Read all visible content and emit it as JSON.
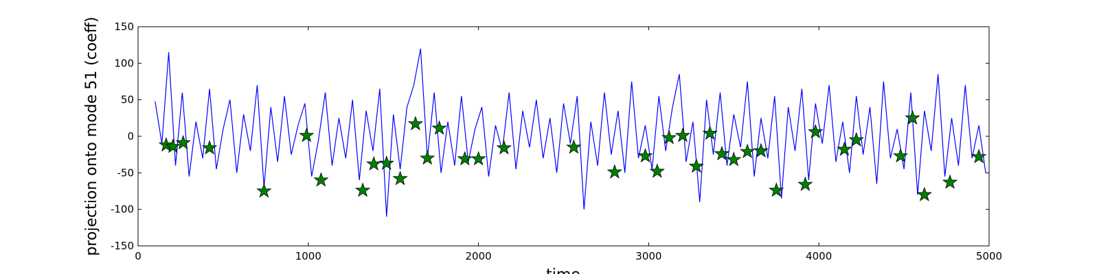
{
  "chart_data": {
    "type": "line",
    "x_label": "time",
    "y_label": "projection onto mode 51 (coeff)",
    "xlim": [
      0,
      5000
    ],
    "ylim": [
      -150,
      150
    ],
    "xticks": [
      0,
      1000,
      2000,
      3000,
      4000,
      5000
    ],
    "yticks": [
      -150,
      -100,
      -50,
      0,
      50,
      100,
      150
    ],
    "series": [
      {
        "type": "line",
        "color": "#0000ff",
        "x": [
          100,
          140,
          180,
          220,
          260,
          300,
          340,
          380,
          420,
          460,
          500,
          540,
          580,
          620,
          660,
          700,
          740,
          780,
          820,
          860,
          900,
          940,
          980,
          1020,
          1060,
          1100,
          1140,
          1180,
          1220,
          1260,
          1300,
          1340,
          1380,
          1420,
          1460,
          1500,
          1540,
          1580,
          1620,
          1660,
          1700,
          1740,
          1780,
          1820,
          1860,
          1900,
          1940,
          1980,
          2020,
          2060,
          2100,
          2140,
          2180,
          2220,
          2260,
          2300,
          2340,
          2380,
          2420,
          2460,
          2500,
          2540,
          2580,
          2620,
          2660,
          2700,
          2740,
          2780,
          2820,
          2860,
          2900,
          2940,
          2980,
          3020,
          3060,
          3100,
          3140,
          3180,
          3220,
          3260,
          3300,
          3340,
          3380,
          3420,
          3460,
          3500,
          3540,
          3580,
          3620,
          3660,
          3700,
          3740,
          3780,
          3820,
          3860,
          3900,
          3940,
          3980,
          4020,
          4060,
          4100,
          4140,
          4180,
          4220,
          4260,
          4300,
          4340,
          4380,
          4420,
          4460,
          4500,
          4540,
          4580,
          4620,
          4660,
          4700,
          4740,
          4780,
          4820,
          4860,
          4900,
          4940,
          4980
        ],
        "values": [
          48,
          -10,
          115,
          -40,
          60,
          -55,
          20,
          -30,
          65,
          -45,
          10,
          50,
          -50,
          30,
          -20,
          70,
          -70,
          40,
          -35,
          55,
          -25,
          15,
          45,
          -55,
          -5,
          60,
          -40,
          25,
          -30,
          50,
          -60,
          35,
          -20,
          65,
          -110,
          30,
          -45,
          40,
          70,
          120,
          -30,
          60,
          -50,
          20,
          -40,
          55,
          -35,
          10,
          40,
          -55,
          15,
          -20,
          60,
          -45,
          35,
          -15,
          50,
          -30,
          25,
          -50,
          45,
          -10,
          55,
          -100,
          20,
          -40,
          60,
          -25,
          35,
          -50,
          75,
          -30,
          15,
          -45,
          55,
          -20,
          40,
          85,
          -35,
          20,
          -90,
          50,
          -25,
          60,
          -40,
          30,
          -15,
          75,
          -55,
          25,
          -30,
          55,
          -85,
          40,
          -20,
          65,
          -60,
          45,
          -10,
          70,
          -35,
          20,
          -50,
          55,
          -25,
          40,
          -65,
          75,
          -30,
          10,
          -45,
          60,
          -80,
          35,
          -20,
          85,
          -55,
          25,
          -40,
          70,
          -30,
          15,
          -50
        ]
      },
      {
        "type": "scatter",
        "marker": "star",
        "color": "#008000",
        "x": [
          165,
          205,
          265,
          420,
          740,
          990,
          1075,
          1320,
          1385,
          1460,
          1540,
          1630,
          1700,
          1770,
          1920,
          2000,
          2150,
          2560,
          2800,
          2980,
          3050,
          3120,
          3200,
          3280,
          3360,
          3430,
          3500,
          3580,
          3660,
          3750,
          3920,
          3980,
          4150,
          4220,
          4480,
          4550,
          4620,
          4770,
          4940
        ],
        "values": [
          -12,
          -14,
          -9,
          -16,
          -75,
          1,
          -60,
          -74,
          -38,
          -37,
          -58,
          17,
          -30,
          11,
          -31,
          -31,
          -16,
          -15,
          -49,
          -27,
          -48,
          -2,
          1,
          -41,
          4,
          -24,
          -32,
          -21,
          -20,
          -74,
          -66,
          6,
          -18,
          -5,
          -27,
          25,
          -80,
          -63,
          -28
        ]
      }
    ]
  }
}
